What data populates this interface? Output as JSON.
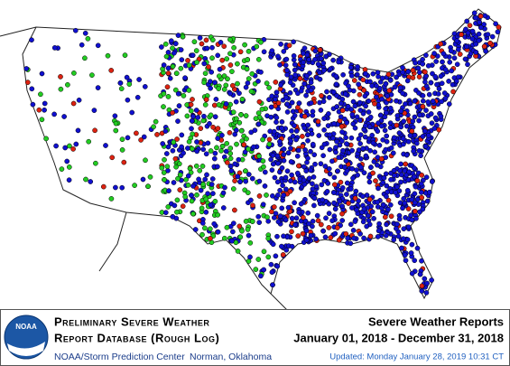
{
  "map": {
    "logo": "NOAA",
    "title_line1": "Preliminary Severe Weather",
    "title_line2": "Report Database (Rough Log)",
    "agency": "NOAA/Storm Prediction Center",
    "location": "Norman, Oklahoma",
    "report_title": "Severe Weather Reports",
    "date_range": "January 01, 2018 - December 31, 2018",
    "updated": "Updated:  Monday January 28, 2019 10:31 CT"
  }
}
